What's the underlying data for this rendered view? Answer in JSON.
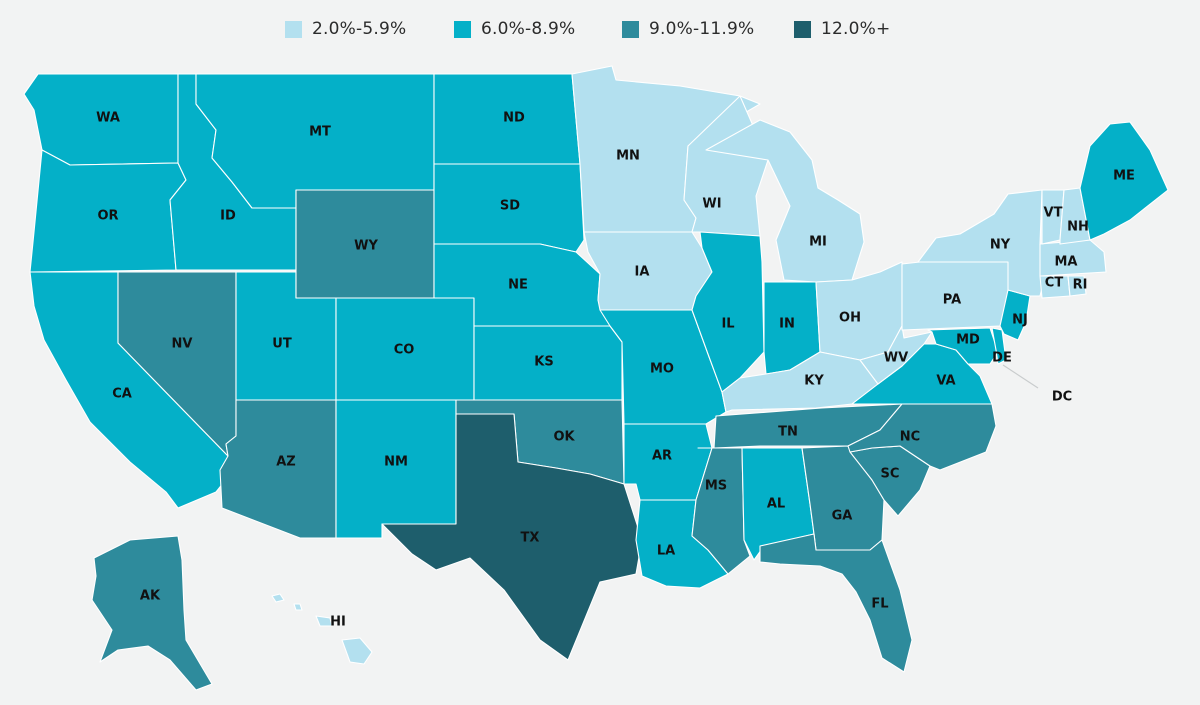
{
  "colors": {
    "background": "#f2f3f3",
    "border": "#ffffff",
    "text": "#111111"
  },
  "legend": [
    {
      "label": "2.0%-5.9%",
      "color": "#b3e0ef"
    },
    {
      "label": "6.0%-8.9%",
      "color": "#04b0c8"
    },
    {
      "label": "9.0%-11.9%",
      "color": "#2e8b9c"
    },
    {
      "label": "12.0%+",
      "color": "#1e5e6c"
    }
  ],
  "states": [
    {
      "code": "WA",
      "bucket": 1
    },
    {
      "code": "OR",
      "bucket": 1
    },
    {
      "code": "CA",
      "bucket": 1
    },
    {
      "code": "ID",
      "bucket": 1
    },
    {
      "code": "MT",
      "bucket": 1
    },
    {
      "code": "NV",
      "bucket": 2
    },
    {
      "code": "UT",
      "bucket": 1
    },
    {
      "code": "AZ",
      "bucket": 2
    },
    {
      "code": "WY",
      "bucket": 2
    },
    {
      "code": "CO",
      "bucket": 1
    },
    {
      "code": "NM",
      "bucket": 1
    },
    {
      "code": "ND",
      "bucket": 1
    },
    {
      "code": "SD",
      "bucket": 1
    },
    {
      "code": "NE",
      "bucket": 1
    },
    {
      "code": "KS",
      "bucket": 1
    },
    {
      "code": "OK",
      "bucket": 2
    },
    {
      "code": "TX",
      "bucket": 3
    },
    {
      "code": "MN",
      "bucket": 0
    },
    {
      "code": "IA",
      "bucket": 0
    },
    {
      "code": "MO",
      "bucket": 1
    },
    {
      "code": "AR",
      "bucket": 1
    },
    {
      "code": "LA",
      "bucket": 1
    },
    {
      "code": "WI",
      "bucket": 0
    },
    {
      "code": "IL",
      "bucket": 1
    },
    {
      "code": "MI",
      "bucket": 0
    },
    {
      "code": "IN",
      "bucket": 1
    },
    {
      "code": "OH",
      "bucket": 0
    },
    {
      "code": "KY",
      "bucket": 0
    },
    {
      "code": "TN",
      "bucket": 2
    },
    {
      "code": "MS",
      "bucket": 2
    },
    {
      "code": "AL",
      "bucket": 1
    },
    {
      "code": "GA",
      "bucket": 2
    },
    {
      "code": "FL",
      "bucket": 2
    },
    {
      "code": "SC",
      "bucket": 2
    },
    {
      "code": "NC",
      "bucket": 2
    },
    {
      "code": "VA",
      "bucket": 1
    },
    {
      "code": "WV",
      "bucket": 0
    },
    {
      "code": "MD",
      "bucket": 1
    },
    {
      "code": "DE",
      "bucket": 1
    },
    {
      "code": "DC",
      "bucket": 1
    },
    {
      "code": "PA",
      "bucket": 0
    },
    {
      "code": "NJ",
      "bucket": 1
    },
    {
      "code": "NY",
      "bucket": 0
    },
    {
      "code": "CT",
      "bucket": 0
    },
    {
      "code": "RI",
      "bucket": 0
    },
    {
      "code": "MA",
      "bucket": 0
    },
    {
      "code": "VT",
      "bucket": 0
    },
    {
      "code": "NH",
      "bucket": 0
    },
    {
      "code": "ME",
      "bucket": 1
    },
    {
      "code": "AK",
      "bucket": 2
    },
    {
      "code": "HI",
      "bucket": 0
    }
  ]
}
